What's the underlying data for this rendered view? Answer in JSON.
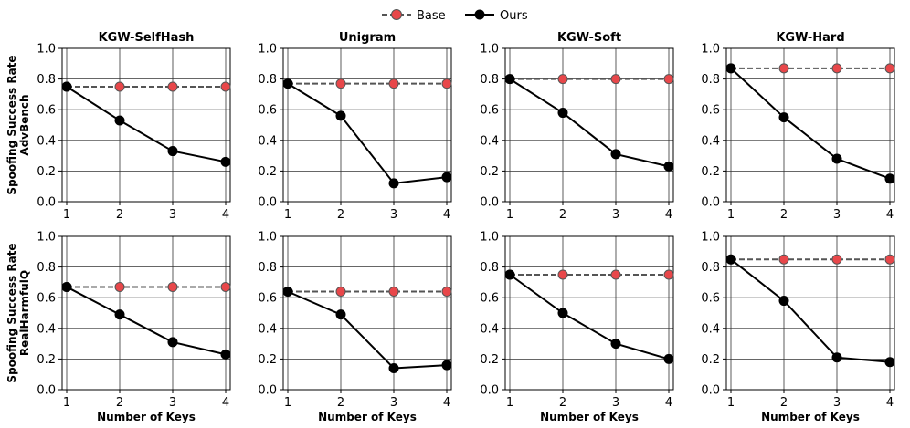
{
  "legend": {
    "base_label": "Base",
    "ours_label": "Ours"
  },
  "colors": {
    "base_line": "#555555",
    "base_marker": "#e8474a",
    "ours": "#000000",
    "grid": "#333333"
  },
  "chart_data": [
    {
      "type": "line",
      "row": "AdvBench",
      "title": "KGW-SelfHash",
      "x": [
        1,
        2,
        3,
        4
      ],
      "ylim": [
        0,
        1.0
      ],
      "ylabel": [
        "Spoofing Success Rate",
        "AdvBench"
      ],
      "xlabel": "",
      "series": [
        {
          "name": "Base",
          "values": [
            0.75,
            0.75,
            0.75,
            0.75
          ]
        },
        {
          "name": "Ours",
          "values": [
            0.75,
            0.53,
            0.33,
            0.26
          ]
        }
      ]
    },
    {
      "type": "line",
      "row": "AdvBench",
      "title": "Unigram",
      "x": [
        1,
        2,
        3,
        4
      ],
      "ylim": [
        0,
        1.0
      ],
      "ylabel": [],
      "xlabel": "",
      "series": [
        {
          "name": "Base",
          "values": [
            0.77,
            0.77,
            0.77,
            0.77
          ]
        },
        {
          "name": "Ours",
          "values": [
            0.77,
            0.56,
            0.12,
            0.16
          ]
        }
      ]
    },
    {
      "type": "line",
      "row": "AdvBench",
      "title": "KGW-Soft",
      "x": [
        1,
        2,
        3,
        4
      ],
      "ylim": [
        0,
        1.0
      ],
      "ylabel": [],
      "xlabel": "",
      "series": [
        {
          "name": "Base",
          "values": [
            0.8,
            0.8,
            0.8,
            0.8
          ]
        },
        {
          "name": "Ours",
          "values": [
            0.8,
            0.58,
            0.31,
            0.23
          ]
        }
      ]
    },
    {
      "type": "line",
      "row": "AdvBench",
      "title": "KGW-Hard",
      "x": [
        1,
        2,
        3,
        4
      ],
      "ylim": [
        0,
        1.0
      ],
      "ylabel": [],
      "xlabel": "",
      "series": [
        {
          "name": "Base",
          "values": [
            0.87,
            0.87,
            0.87,
            0.87
          ]
        },
        {
          "name": "Ours",
          "values": [
            0.87,
            0.55,
            0.28,
            0.15
          ]
        }
      ]
    },
    {
      "type": "line",
      "row": "RealHarmfulQ",
      "title": "",
      "x": [
        1,
        2,
        3,
        4
      ],
      "ylim": [
        0,
        1.0
      ],
      "ylabel": [
        "Spoofing Success Rate",
        "RealHarmfulQ"
      ],
      "xlabel": "Number of Keys",
      "series": [
        {
          "name": "Base",
          "values": [
            0.67,
            0.67,
            0.67,
            0.67
          ]
        },
        {
          "name": "Ours",
          "values": [
            0.67,
            0.49,
            0.31,
            0.23
          ]
        }
      ]
    },
    {
      "type": "line",
      "row": "RealHarmfulQ",
      "title": "",
      "x": [
        1,
        2,
        3,
        4
      ],
      "ylim": [
        0,
        1.0
      ],
      "ylabel": [],
      "xlabel": "Number of Keys",
      "series": [
        {
          "name": "Base",
          "values": [
            0.64,
            0.64,
            0.64,
            0.64
          ]
        },
        {
          "name": "Ours",
          "values": [
            0.64,
            0.49,
            0.14,
            0.16
          ]
        }
      ]
    },
    {
      "type": "line",
      "row": "RealHarmfulQ",
      "title": "",
      "x": [
        1,
        2,
        3,
        4
      ],
      "ylim": [
        0,
        1.0
      ],
      "ylabel": [],
      "xlabel": "Number of Keys",
      "series": [
        {
          "name": "Base",
          "values": [
            0.75,
            0.75,
            0.75,
            0.75
          ]
        },
        {
          "name": "Ours",
          "values": [
            0.75,
            0.5,
            0.3,
            0.2
          ]
        }
      ]
    },
    {
      "type": "line",
      "row": "RealHarmfulQ",
      "title": "",
      "x": [
        1,
        2,
        3,
        4
      ],
      "ylim": [
        0,
        1.0
      ],
      "ylabel": [],
      "xlabel": "Number of Keys",
      "series": [
        {
          "name": "Base",
          "values": [
            0.85,
            0.85,
            0.85,
            0.85
          ]
        },
        {
          "name": "Ours",
          "values": [
            0.85,
            0.58,
            0.21,
            0.18
          ]
        }
      ]
    }
  ],
  "yticks": [
    "0.0",
    "0.2",
    "0.4",
    "0.6",
    "0.8",
    "1.0"
  ],
  "xticks": [
    "1",
    "2",
    "3",
    "4"
  ]
}
